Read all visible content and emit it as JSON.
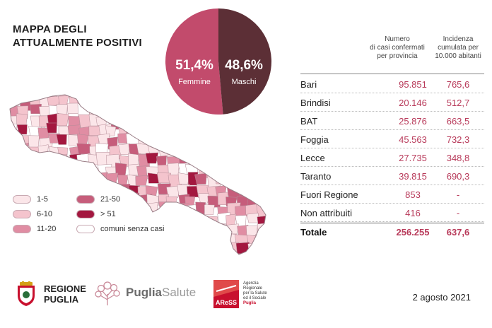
{
  "title": {
    "line1": "MAPPA DEGLI",
    "line2": "ATTUALMENTE POSITIVI"
  },
  "gender": {
    "female": {
      "pct": "51,4%",
      "label": "Femmine",
      "value": 51.4,
      "color": "#c24b6c"
    },
    "male": {
      "pct": "48,6%",
      "label": "Maschi",
      "value": 48.6,
      "color": "#5c2f36"
    }
  },
  "table": {
    "col1": "Numero di casi confermati per provincia",
    "col1_lines": [
      "Numero",
      "di casi confermati",
      "per provincia"
    ],
    "col2_lines": [
      "Incidenza",
      "cumulata per",
      "10.000 abitanti"
    ],
    "rows": [
      {
        "name": "Bari",
        "cases": "95.851",
        "incidence": "765,6"
      },
      {
        "name": "Brindisi",
        "cases": "20.146",
        "incidence": "512,7"
      },
      {
        "name": "BAT",
        "cases": "25.876",
        "incidence": "663,5"
      },
      {
        "name": "Foggia",
        "cases": "45.563",
        "incidence": "732,3"
      },
      {
        "name": "Lecce",
        "cases": "27.735",
        "incidence": "348,8"
      },
      {
        "name": "Taranto",
        "cases": "39.815",
        "incidence": "690,3"
      },
      {
        "name": "Fuori Regione",
        "cases": "853",
        "incidence": "-"
      },
      {
        "name": "Non attribuiti",
        "cases": "416",
        "incidence": "-"
      }
    ],
    "total": {
      "name": "Totale",
      "cases": "256.255",
      "incidence": "637,6"
    }
  },
  "legend": [
    {
      "label": "1-5",
      "color": "#fbe6e9"
    },
    {
      "label": "21-50",
      "color": "#c65d7b"
    },
    {
      "label": "6-10",
      "color": "#f4c4cd"
    },
    {
      "label": "> 51",
      "color": "#a3173f"
    },
    {
      "label": "11-20",
      "color": "#e08da3"
    },
    {
      "label": "comuni senza casi",
      "color": "#ffffff"
    }
  ],
  "map_colors": [
    "#fbe6e9",
    "#f4c4cd",
    "#e08da3",
    "#c65d7b",
    "#a3173f",
    "#ffffff"
  ],
  "logos": {
    "regione": {
      "line1": "REGIONE",
      "line2": "PUGLIA"
    },
    "puglia_salute": {
      "part1": "Puglia",
      "part2": "Salute"
    },
    "aress": {
      "acronym": "AReSS",
      "lines": [
        "Agenzia",
        "Regionale",
        "per la Salute",
        "ed il Sociale",
        "Puglia"
      ]
    }
  },
  "date": "2 agosto 2021"
}
